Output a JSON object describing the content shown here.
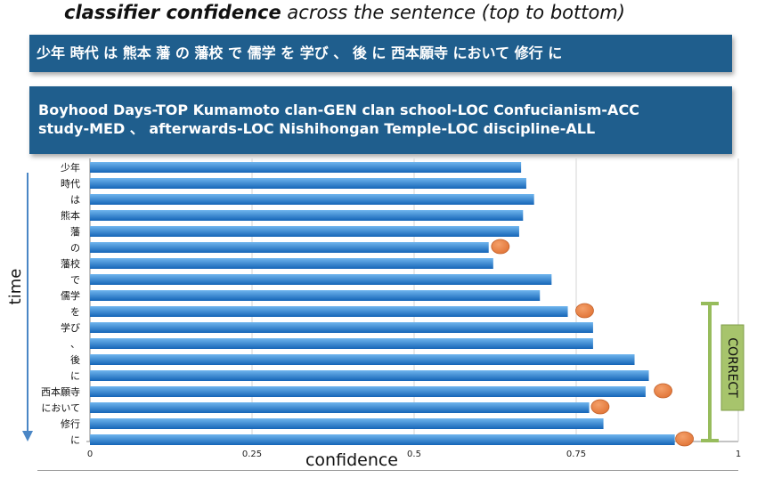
{
  "header": {
    "title_bold": "classifier confidence",
    "title_rest": " across the sentence (top to bottom)"
  },
  "source_banner": {
    "text": "少年 時代 は 熊本 藩 の 藩校 で 儒学 を 学び 、 後 に 西本願寺 において 修行 に"
  },
  "translation_banner": {
    "line1": "Boyhood Days-TOP Kumamoto clan-GEN clan school-LOC Confucianism-ACC",
    "line2": "study-MED 、 afterwards-LOC Nishihongan Temple-LOC discipline-ALL"
  },
  "correct_label": "CORRECT",
  "colors": {
    "banner": "#1f5e8d",
    "bar_light": "#6fb5ee",
    "bar_dark": "#1565b7",
    "marker": "#e2773a",
    "correct_bracket": "#97bc5c",
    "correct_box": "#a7c46c",
    "time_arrow": "#4a86c5"
  },
  "chart_data": {
    "type": "bar",
    "orientation": "horizontal",
    "categories": [
      "少年",
      "時代",
      "は",
      "熊本",
      "藩",
      "の",
      "藩校",
      "で",
      "儒学",
      "を",
      "学び",
      "、",
      "後",
      "に",
      "西本願寺",
      "において",
      "修行",
      "に"
    ],
    "values": [
      0.665,
      0.673,
      0.685,
      0.668,
      0.662,
      0.615,
      0.622,
      0.712,
      0.694,
      0.737,
      0.776,
      0.776,
      0.84,
      0.862,
      0.857,
      0.77,
      0.792,
      0.902
    ],
    "markers": [
      {
        "category_index": 5,
        "value": 0.633
      },
      {
        "category_index": 9,
        "value": 0.763
      },
      {
        "category_index": 14,
        "value": 0.884
      },
      {
        "category_index": 15,
        "value": 0.787
      },
      {
        "category_index": 17,
        "value": 0.917
      }
    ],
    "correct_range": [
      9,
      17
    ],
    "xlabel": "confidence",
    "ylabel": "time",
    "xlim": [
      0,
      1
    ],
    "xticks": [
      "0",
      "0.25",
      "0.5",
      "0.75",
      "1"
    ],
    "grid": true
  }
}
